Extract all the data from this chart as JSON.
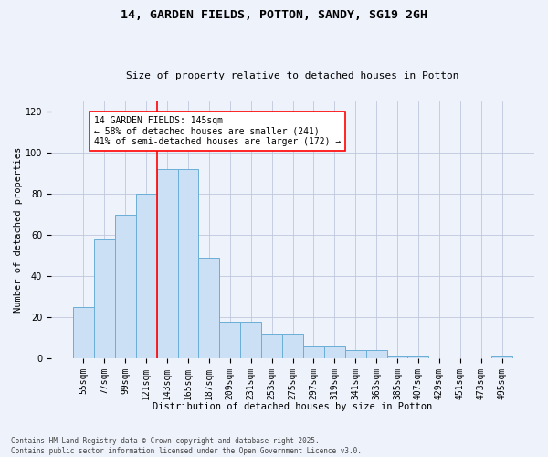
{
  "title_line1": "14, GARDEN FIELDS, POTTON, SANDY, SG19 2GH",
  "title_line2": "Size of property relative to detached houses in Potton",
  "xlabel": "Distribution of detached houses by size in Potton",
  "ylabel": "Number of detached properties",
  "bar_labels": [
    "55sqm",
    "77sqm",
    "99sqm",
    "121sqm",
    "143sqm",
    "165sqm",
    "187sqm",
    "209sqm",
    "231sqm",
    "253sqm",
    "275sqm",
    "297sqm",
    "319sqm",
    "341sqm",
    "363sqm",
    "385sqm",
    "407sqm",
    "429sqm",
    "451sqm",
    "473sqm",
    "495sqm"
  ],
  "bar_values": [
    25,
    58,
    70,
    80,
    92,
    92,
    49,
    18,
    18,
    12,
    12,
    6,
    6,
    4,
    4,
    1,
    1,
    0,
    0,
    0,
    1
  ],
  "bar_color": "#cce0f5",
  "bar_edge_color": "#6aaed6",
  "red_line_x": 3.5,
  "annotation_text": "14 GARDEN FIELDS: 145sqm\n← 58% of detached houses are smaller (241)\n41% of semi-detached houses are larger (172) →",
  "annotation_box_color": "white",
  "annotation_box_edge_color": "red",
  "ylim": [
    0,
    125
  ],
  "yticks": [
    0,
    20,
    40,
    60,
    80,
    100,
    120
  ],
  "background_color": "#eef2fb",
  "footer_text": "Contains HM Land Registry data © Crown copyright and database right 2025.\nContains public sector information licensed under the Open Government Licence v3.0.",
  "grid_color": "#c0c8dc",
  "figsize": [
    6.0,
    5.0
  ],
  "dpi": 100,
  "title_fontsize": 9.5,
  "subtitle_fontsize": 8,
  "tick_fontsize": 7,
  "axis_label_fontsize": 7.5,
  "annotation_fontsize": 7,
  "footer_fontsize": 5.5
}
